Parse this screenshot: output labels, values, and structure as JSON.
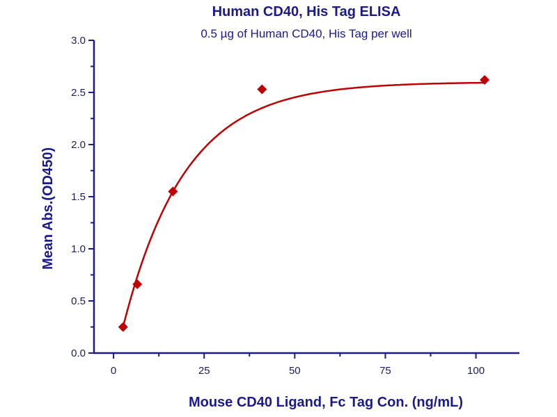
{
  "chart_data": {
    "type": "scatter",
    "title": "Human CD40, His Tag ELISA",
    "subtitle": "0.5 µg of Human CD40, His Tag per well",
    "xlabel": "Mouse CD40 Ligand, Fc Tag Con. (ng/mL)",
    "ylabel": "Mean Abs.(OD450)",
    "xlim": [
      -5.4,
      112
    ],
    "ylim": [
      0,
      3.0
    ],
    "xticks": [
      "0",
      "25",
      "50",
      "75",
      "100"
    ],
    "yticks": [
      "0.0",
      "0.5",
      "1.0",
      "1.5",
      "2.0",
      "2.5",
      "3.0"
    ],
    "grid": false,
    "series": [
      {
        "name": "Mouse CD40 Ligand, Fc Tag",
        "x": [
          2.62,
          6.55,
          16.38,
          40.96,
          102.4
        ],
        "y": [
          0.25,
          0.66,
          1.55,
          2.53,
          2.62
        ],
        "color": "#c00000",
        "marker": "diamond",
        "fit": {
          "model": "saturation",
          "ymax": 2.6,
          "k": 0.0585,
          "x0": 0.89
        }
      }
    ],
    "axis_color": "#1a1a8c"
  }
}
